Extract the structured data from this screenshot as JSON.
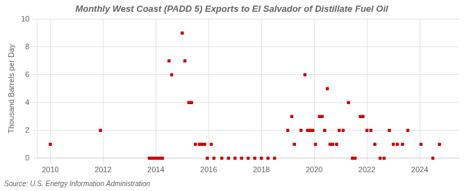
{
  "chart_data": {
    "type": "scatter",
    "title": "Monthly West Coast (PADD 5) Exports to El Salvador of Distillate Fuel Oil",
    "y_label": "Thousand Barrels per Day",
    "annotations": [
      "Source: U.S. Energy Information Administration"
    ],
    "x": [
      2010.0,
      2011.9,
      2013.75,
      2013.85,
      2013.95,
      2014.05,
      2014.15,
      2014.25,
      2014.5,
      2014.6,
      2015.0,
      2015.1,
      2015.25,
      2015.35,
      2015.5,
      2015.65,
      2015.75,
      2015.85,
      2015.95,
      2016.1,
      2016.2,
      2016.5,
      2016.75,
      2017.0,
      2017.25,
      2017.5,
      2017.75,
      2018.0,
      2018.25,
      2018.5,
      2019.0,
      2019.15,
      2019.25,
      2019.5,
      2019.65,
      2019.75,
      2019.85,
      2019.95,
      2020.05,
      2020.2,
      2020.3,
      2020.4,
      2020.5,
      2020.6,
      2020.7,
      2020.85,
      2020.95,
      2021.1,
      2021.3,
      2021.45,
      2021.55,
      2021.75,
      2021.85,
      2022.0,
      2022.15,
      2022.3,
      2022.5,
      2022.65,
      2022.85,
      2023.0,
      2023.15,
      2023.35,
      2023.55,
      2024.05,
      2024.5,
      2024.75
    ],
    "values": [
      1,
      2,
      0,
      0,
      0,
      0,
      0,
      0,
      7,
      6,
      9,
      7,
      4,
      4,
      1,
      1,
      1,
      1,
      0,
      1,
      0,
      0,
      0,
      0,
      0,
      0,
      0,
      0,
      0,
      0,
      2,
      3,
      1,
      2,
      6,
      2,
      2,
      2,
      1,
      3,
      3,
      2,
      5,
      1,
      1,
      1,
      2,
      2,
      4,
      0,
      0,
      3,
      3,
      2,
      2,
      1,
      0,
      0,
      2,
      1,
      1,
      1,
      2,
      1,
      0,
      1
    ],
    "color": "#cc0000",
    "marker": "square",
    "xlim": [
      2009.5,
      2025.5
    ],
    "xticks": [
      2010,
      2012,
      2014,
      2016,
      2018,
      2020,
      2022,
      2024
    ],
    "ylim": [
      0,
      10
    ],
    "yticks": [
      0,
      2,
      4,
      6,
      8,
      10
    ],
    "grid": true
  }
}
